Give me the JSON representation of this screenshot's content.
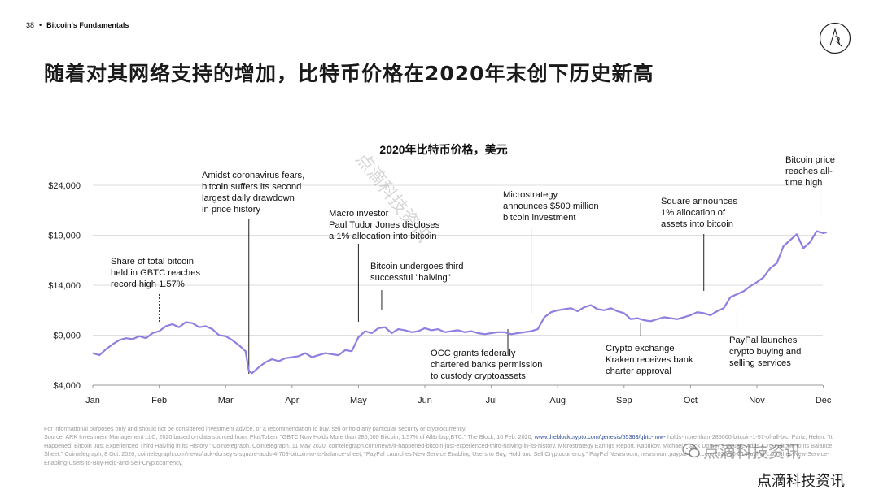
{
  "header": {
    "page_number": "38",
    "separator": "•",
    "section": "Bitcoin's Fundamentals"
  },
  "title": {
    "text": "随着对其网络支持的增加，比特币价格在2020年末创下历史新高"
  },
  "chart_data": {
    "type": "line",
    "title": "2020年比特币价格，美元",
    "xlabel": "",
    "ylabel": "",
    "xlim": [
      0,
      11.1
    ],
    "ylim": [
      4000,
      24000
    ],
    "categories": [
      "Jan",
      "Feb",
      "Mar",
      "Apr",
      "May",
      "Jun",
      "Jul",
      "Aug",
      "Sep",
      "Oct",
      "Nov",
      "Dec"
    ],
    "y_ticks": [
      4000,
      9000,
      14000,
      19000,
      24000
    ],
    "y_tick_labels": [
      "$4,000",
      "$9,000",
      "$14,000",
      "$19,000",
      "$24,000"
    ],
    "color": "#8f7fe0",
    "series": [
      {
        "name": "Bitcoin price (USD)",
        "x": [
          0,
          0.1,
          0.2,
          0.3,
          0.4,
          0.5,
          0.6,
          0.7,
          0.8,
          0.9,
          1.0,
          1.1,
          1.2,
          1.3,
          1.4,
          1.5,
          1.6,
          1.7,
          1.8,
          1.9,
          2.0,
          2.1,
          2.2,
          2.3,
          2.35,
          2.4,
          2.5,
          2.6,
          2.7,
          2.8,
          2.9,
          3.0,
          3.1,
          3.2,
          3.3,
          3.4,
          3.5,
          3.6,
          3.7,
          3.8,
          3.9,
          4.0,
          4.1,
          4.2,
          4.3,
          4.4,
          4.5,
          4.6,
          4.7,
          4.8,
          4.9,
          5.0,
          5.1,
          5.2,
          5.3,
          5.4,
          5.5,
          5.6,
          5.7,
          5.8,
          5.9,
          6.0,
          6.1,
          6.2,
          6.3,
          6.4,
          6.5,
          6.6,
          6.7,
          6.8,
          6.9,
          7.0,
          7.1,
          7.2,
          7.3,
          7.4,
          7.5,
          7.6,
          7.7,
          7.8,
          7.9,
          8.0,
          8.1,
          8.2,
          8.3,
          8.4,
          8.5,
          8.6,
          8.7,
          8.8,
          8.9,
          9.0,
          9.1,
          9.2,
          9.3,
          9.4,
          9.5,
          9.6,
          9.7,
          9.8,
          9.9,
          10.0,
          10.1,
          10.2,
          10.3,
          10.4,
          10.5,
          10.6,
          10.7,
          10.8,
          10.9,
          11.0,
          11.05
        ],
        "values": [
          7200,
          7000,
          7600,
          8100,
          8500,
          8700,
          8600,
          8900,
          8700,
          9200,
          9400,
          9900,
          10100,
          9800,
          10300,
          10200,
          9800,
          9900,
          9600,
          9000,
          8900,
          8500,
          8000,
          7400,
          5400,
          5200,
          5800,
          6300,
          6600,
          6400,
          6700,
          6800,
          6900,
          7200,
          6800,
          7000,
          7200,
          7100,
          7000,
          7500,
          7400,
          8800,
          9400,
          9200,
          9700,
          9800,
          9200,
          9600,
          9500,
          9300,
          9400,
          9700,
          9500,
          9600,
          9300,
          9400,
          9500,
          9300,
          9400,
          9200,
          9100,
          9200,
          9300,
          9300,
          9100,
          9200,
          9300,
          9400,
          9600,
          10800,
          11300,
          11500,
          11600,
          11700,
          11400,
          11800,
          12000,
          11600,
          11500,
          11700,
          11400,
          11200,
          10600,
          10700,
          10500,
          10400,
          10600,
          10800,
          10700,
          10600,
          10800,
          11000,
          11300,
          11200,
          11000,
          11400,
          11700,
          12800,
          13100,
          13400,
          13900,
          14300,
          14800,
          15700,
          16200,
          17900,
          18500,
          19100,
          17700,
          18300,
          19400,
          19200,
          19300
        ]
      }
    ],
    "annotations": [
      {
        "x": 1.0,
        "y": 10100,
        "label_lines": [
          "Share of total bitcoin",
          "held in GBTC reaches",
          "record high 1.57%"
        ]
      },
      {
        "x": 2.35,
        "y": 5400,
        "label_lines": [
          "Amidst coronavirus fears,",
          "bitcoin suffers its second",
          "largest daily drawdown",
          "in price history"
        ]
      },
      {
        "x": 4.0,
        "y": 9000,
        "label_lines": [
          "Macro investor",
          "Paul Tudor Jones discloses",
          "a 1% allocation into bitcoin"
        ]
      },
      {
        "x": 4.35,
        "y": 10500,
        "label_lines": [
          "Bitcoin undergoes third",
          "successful \"halving\""
        ]
      },
      {
        "x": 6.25,
        "y": 9300,
        "label_lines": [
          "OCC grants federally",
          "chartered banks permission",
          "to custody cryptoassets"
        ]
      },
      {
        "x": 6.6,
        "y": 11400,
        "label_lines": [
          "Microstrategy",
          "announces $500 million",
          "bitcoin investment"
        ]
      },
      {
        "x": 8.25,
        "y": 10800,
        "label_lines": [
          "Crypto exchange",
          "Kraken receives bank",
          "charter approval"
        ]
      },
      {
        "x": 9.2,
        "y": 13400,
        "label_lines": [
          "Square announces",
          "1% allocation of",
          "assets into bitcoin"
        ]
      },
      {
        "x": 9.7,
        "y": 13500,
        "label_lines": [
          "PayPal launches",
          "crypto buying and",
          "selling services"
        ]
      },
      {
        "x": 10.95,
        "y": 19500,
        "label_lines": [
          "Bitcoin price",
          "reaches all-",
          "time high"
        ]
      }
    ]
  },
  "footer": {
    "disclaimer": "For informational purposes only and should not be considered investment advice, or a recommendation to buy, sell or hold any particular security or cryptocurrency.",
    "source_intro": "Source: ARK Investment Management LLC, 2020 based on data sourced from: PlusToken, \"GBTC Now Holds More than 285,000 Bitcoin, 1.57% of All&nbsp;BTC.\" The Block, 10 Feb. 2020,",
    "source_link": "www.theblockcrypto.com/genesis/55363/gbtc-now-",
    "source_rest": "holds-more-than-285000-bitcoin-1-57-of-all-btc, Partz, Helen. \"It Happened: Bitcoin Just Experienced Third Halving in its History.\" Cointelegraph, Cointelegraph, 11 May 2020, cointelegraph.com/news/it-happened-bitcoin-just-experienced-third-halving-in-its-history, Microstrategy Earings Report, Kaprikov, Michael. \"Jack Dorsey's Square Adds 4,709 Bitcoin to Its Balance Sheet.\" Cointelegraph, 8 Oct. 2020, cointelegraph.com/news/jack-dorsey-s-square-adds-4-709-bitcoin-to-its-balance-sheet, \"PayPal Launches New Service Enabling Users to Buy, Hold and Sell Cryptocurrency.\" PayPal Newsroom, newsroom.paypal-corp.com/2020-10-21-PayPal-Launches-New-Service-Enabling-Users-to-Buy-Hold-and-Sell-Cryptocurrency."
  },
  "watermarks": {
    "diagonal": "点滴科技资讯",
    "wechat": "点滴科技资讯",
    "brand": "点滴科技资讯"
  }
}
